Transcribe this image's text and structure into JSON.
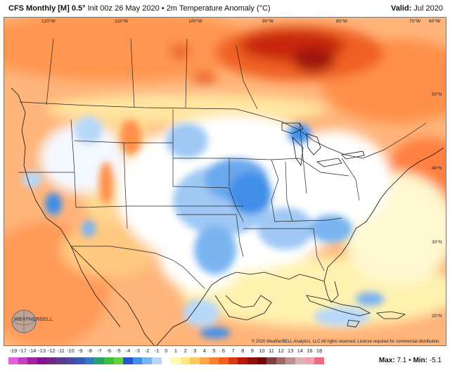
{
  "header": {
    "model": "CFS Monthly [M] 0.5°",
    "init": "Init 00z 26 May 2020",
    "separator": "•",
    "field": "2m Temperature Anomaly (°C)",
    "valid_label": "Valid:",
    "valid_value": "Jul 2020"
  },
  "map": {
    "longitude_labels": [
      "120°W",
      "110°W",
      "100°W",
      "90°W",
      "80°W",
      "70°W",
      "60°W"
    ],
    "latitude_labels": [
      "50°N",
      "40°N",
      "30°N",
      "20°N"
    ]
  },
  "logo": {
    "text": "WEATHERBELL",
    "icon": "weatherbell-globe-logo"
  },
  "credit": "© 2020 WeatherBELL Analytics, LLC All rights reserved. License required for commercial distribution.",
  "colorbar": {
    "labels": [
      "-19",
      "-17",
      "-14",
      "-13",
      "-12",
      "-11",
      "-10",
      "-9",
      "-8",
      "-7",
      "-6",
      "-5",
      "-4",
      "-3",
      "-2",
      "-1",
      "0",
      "1",
      "2",
      "3",
      "4",
      "5",
      "6",
      "7",
      "8",
      "9",
      "10",
      "11",
      "12",
      "13",
      "14",
      "16",
      "18"
    ],
    "colors": [
      "#e060e0",
      "#c040c0",
      "#a020a0",
      "#8a1090",
      "#702880",
      "#5c3a8c",
      "#4a4aa0",
      "#3a5ab8",
      "#2f7bc8",
      "#2aa070",
      "#3dbe3d",
      "#66d040",
      "#2a55d0",
      "#3f8ee8",
      "#7ab4f0",
      "#b8d8f8",
      "#ffffff",
      "#fff8b0",
      "#ffe680",
      "#ffc860",
      "#ffa545",
      "#ff8030",
      "#f06020",
      "#d83a10",
      "#b81808",
      "#901008",
      "#6e0a0a",
      "#804040",
      "#a06868",
      "#c09090",
      "#d8b4b4",
      "#f0a0b0",
      "#f06a80"
    ]
  },
  "stats": {
    "max_label": "Max:",
    "max_value": "7.1",
    "min_label": "Min:",
    "min_value": "-5.1",
    "separator": "•"
  }
}
